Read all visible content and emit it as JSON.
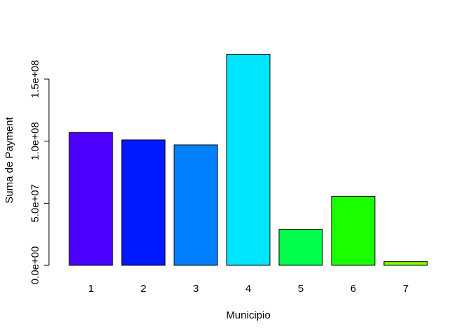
{
  "chart_data": {
    "type": "bar",
    "categories": [
      "1",
      "2",
      "3",
      "4",
      "5",
      "6",
      "7"
    ],
    "values": [
      107000000,
      101000000,
      97000000,
      170000000,
      29000000,
      55500000,
      3000000
    ],
    "colors": [
      "#4C00FF",
      "#001AFF",
      "#0080FF",
      "#00E5FF",
      "#00FF4D",
      "#1AFF00",
      "#80FF00"
    ],
    "title": "",
    "xlabel": "Municipio",
    "ylabel": "Suma de Payment",
    "y_ticks": [
      {
        "value": 0,
        "label": "0.0e+00"
      },
      {
        "value": 50000000,
        "label": "5.0e+07"
      },
      {
        "value": 100000000,
        "label": "1.0e+08"
      },
      {
        "value": 150000000,
        "label": "1.5e+08"
      }
    ],
    "ylim": [
      0,
      170000000
    ],
    "grid": false,
    "bar_border_color": "#000000"
  }
}
